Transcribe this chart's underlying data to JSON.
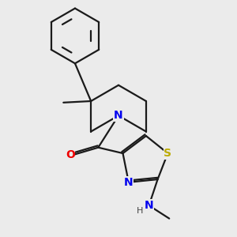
{
  "background_color": "#ebebeb",
  "bond_color": "#1a1a1a",
  "bond_width": 1.6,
  "atom_colors": {
    "N": "#0000ee",
    "O": "#ee0000",
    "S": "#bbaa00",
    "C": "#1a1a1a"
  },
  "figsize": [
    3.0,
    3.0
  ],
  "dpi": 100
}
